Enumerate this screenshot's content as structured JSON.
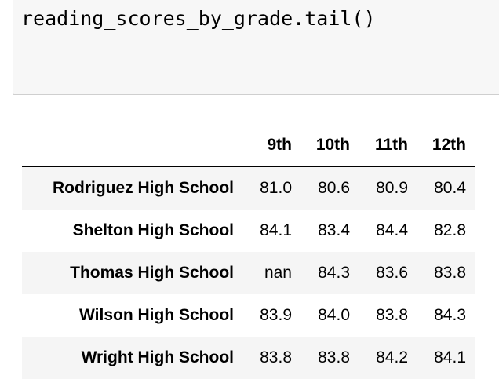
{
  "code_cell": {
    "code": "reading_scores_by_grade.tail()"
  },
  "table": {
    "columns": [
      "9th",
      "10th",
      "11th",
      "12th"
    ],
    "rows": [
      {
        "school": "Rodriguez High School",
        "values": [
          "81.0",
          "80.6",
          "80.9",
          "80.4"
        ]
      },
      {
        "school": "Shelton High School",
        "values": [
          "84.1",
          "83.4",
          "84.4",
          "82.8"
        ]
      },
      {
        "school": "Thomas High School",
        "values": [
          "nan",
          "84.3",
          "83.6",
          "83.8"
        ]
      },
      {
        "school": "Wilson High School",
        "values": [
          "83.9",
          "84.0",
          "83.8",
          "84.3"
        ]
      },
      {
        "school": "Wright High School",
        "values": [
          "83.8",
          "83.8",
          "84.2",
          "84.1"
        ]
      }
    ]
  }
}
